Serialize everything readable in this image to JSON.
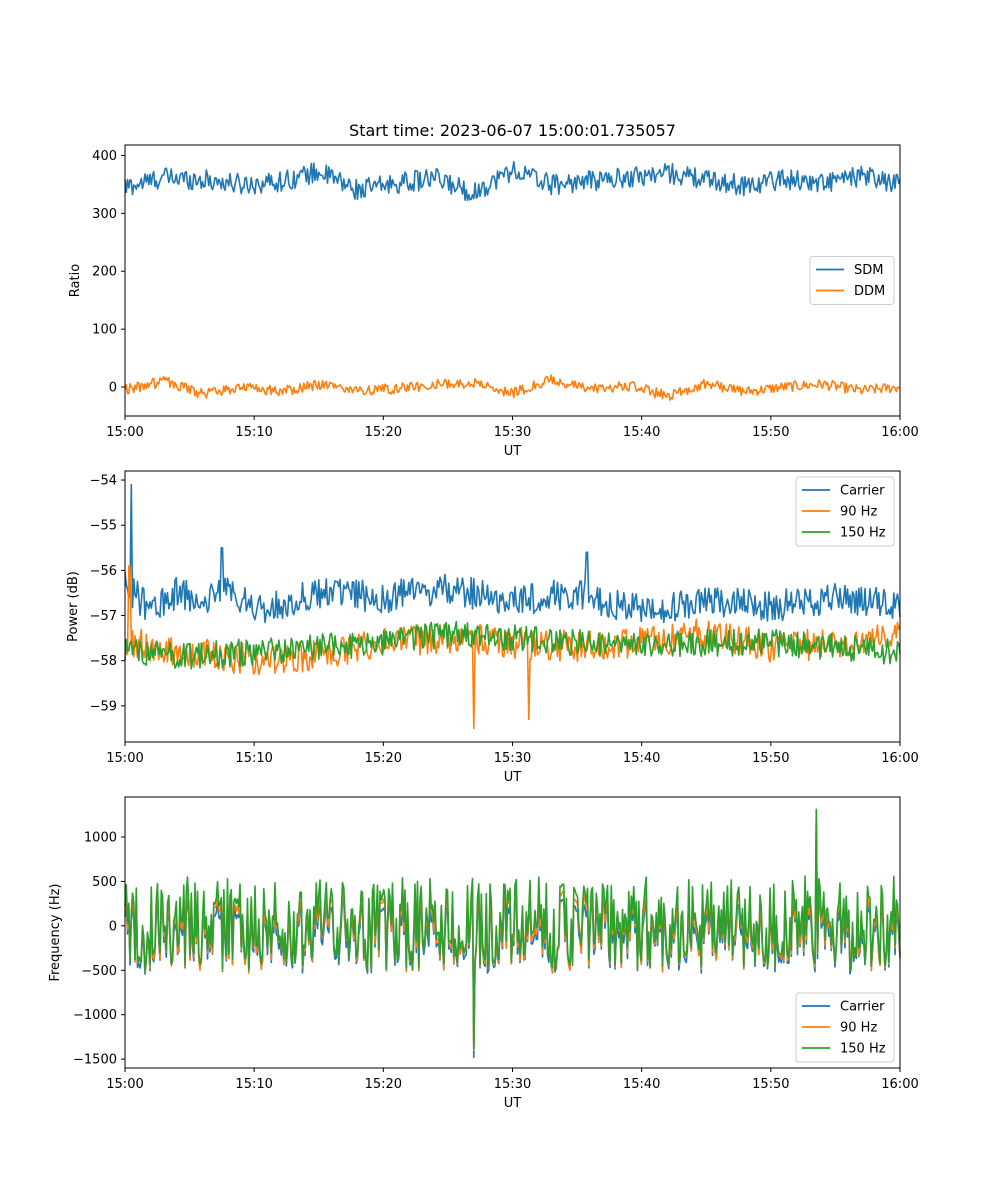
{
  "figure_title": "Start time: 2023-06-07 15:00:01.735057",
  "colors": {
    "blue": "#1f77b4",
    "orange": "#ff7f0e",
    "green": "#2ca02c"
  },
  "chart_data": [
    {
      "type": "line",
      "title": "Start time: 2023-06-07 15:00:01.735057",
      "xlabel": "UT",
      "ylabel": "Ratio",
      "xlim": [
        "15:00",
        "16:00"
      ],
      "xticks": [
        "15:00",
        "15:10",
        "15:20",
        "15:30",
        "15:40",
        "15:50",
        "16:00"
      ],
      "ylim": [
        -50,
        418
      ],
      "yticks": [
        0,
        100,
        200,
        300,
        400
      ],
      "grid": false,
      "legend_position": "center-right",
      "series": [
        {
          "name": "SDM",
          "color": "#1f77b4",
          "x": [
            "15:00",
            "15:03",
            "15:06",
            "15:09",
            "15:12",
            "15:15",
            "15:18",
            "15:21",
            "15:24",
            "15:27",
            "15:30",
            "15:33",
            "15:36",
            "15:39",
            "15:42",
            "15:45",
            "15:48",
            "15:51",
            "15:54",
            "15:57",
            "16:00"
          ],
          "y": [
            345,
            362,
            358,
            350,
            355,
            372,
            340,
            352,
            360,
            335,
            375,
            350,
            356,
            362,
            370,
            358,
            348,
            360,
            352,
            364,
            350
          ],
          "base": 355,
          "amplitude": 18
        },
        {
          "name": "DDM",
          "color": "#ff7f0e",
          "x": [
            "15:00",
            "15:03",
            "15:06",
            "15:09",
            "15:12",
            "15:15",
            "15:18",
            "15:21",
            "15:24",
            "15:27",
            "15:30",
            "15:33",
            "15:36",
            "15:39",
            "15:42",
            "15:45",
            "15:48",
            "15:51",
            "15:54",
            "15:57",
            "16:00"
          ],
          "y": [
            -5,
            10,
            -12,
            0,
            -8,
            5,
            -6,
            -3,
            4,
            8,
            -10,
            12,
            -4,
            2,
            -15,
            6,
            -8,
            0,
            5,
            -6,
            0
          ],
          "base": 0,
          "amplitude": 9
        }
      ]
    },
    {
      "type": "line",
      "xlabel": "UT",
      "ylabel": "Power (dB)",
      "xlim": [
        "15:00",
        "16:00"
      ],
      "xticks": [
        "15:00",
        "15:10",
        "15:20",
        "15:30",
        "15:40",
        "15:50",
        "16:00"
      ],
      "ylim": [
        -59.8,
        -53.8
      ],
      "yticks": [
        -54,
        -55,
        -56,
        -57,
        -58,
        -59
      ],
      "grid": false,
      "legend_position": "top-right",
      "series": [
        {
          "name": "Carrier",
          "color": "#1f77b4",
          "x": [
            "15:00",
            "15:02",
            "15:04",
            "15:06",
            "15:08",
            "15:10",
            "15:15",
            "15:20",
            "15:25",
            "15:30",
            "15:35",
            "15:40",
            "15:45",
            "15:50",
            "15:55",
            "16:00"
          ],
          "y": [
            -56.3,
            -56.9,
            -56.5,
            -56.7,
            -56.4,
            -56.9,
            -56.5,
            -56.6,
            -56.4,
            -56.7,
            -56.5,
            -56.9,
            -56.7,
            -56.8,
            -56.6,
            -56.8
          ],
          "spikes": [
            [
              "15:00:30",
              -54.1
            ],
            [
              "15:07:30",
              -55.5
            ],
            [
              "15:35:45",
              -55.6
            ]
          ],
          "amplitude": 0.35
        },
        {
          "name": "90 Hz",
          "color": "#ff7f0e",
          "x": [
            "15:00",
            "15:05",
            "15:10",
            "15:15",
            "15:20",
            "15:25",
            "15:30",
            "15:35",
            "15:40",
            "15:45",
            "15:50",
            "15:55",
            "16:00"
          ],
          "y": [
            -57.6,
            -57.8,
            -58.0,
            -57.9,
            -57.6,
            -57.5,
            -57.6,
            -57.7,
            -57.6,
            -57.4,
            -57.7,
            -57.6,
            -57.5
          ],
          "spikes": [
            [
              "15:00:20",
              -55.9
            ],
            [
              "15:27:00",
              -59.5
            ],
            [
              "15:31:15",
              -59.3
            ]
          ],
          "amplitude": 0.35
        },
        {
          "name": "150 Hz",
          "color": "#2ca02c",
          "x": [
            "15:00",
            "15:05",
            "15:10",
            "15:15",
            "15:20",
            "15:25",
            "15:30",
            "15:35",
            "15:40",
            "15:45",
            "15:50",
            "15:55",
            "16:00"
          ],
          "y": [
            -57.8,
            -57.9,
            -57.8,
            -57.7,
            -57.6,
            -57.4,
            -57.5,
            -57.6,
            -57.7,
            -57.6,
            -57.6,
            -57.7,
            -57.8
          ],
          "spikes": [],
          "amplitude": 0.3
        }
      ]
    },
    {
      "type": "line",
      "xlabel": "UT",
      "ylabel": "Frequency (Hz)",
      "xlim": [
        "15:00",
        "16:00"
      ],
      "xticks": [
        "15:00",
        "15:10",
        "15:20",
        "15:30",
        "15:40",
        "15:50",
        "16:00"
      ],
      "ylim": [
        -1600,
        1450
      ],
      "yticks": [
        1000,
        500,
        0,
        -500,
        -1000,
        -1500
      ],
      "grid": false,
      "legend_position": "bottom-right",
      "series": [
        {
          "name": "Carrier",
          "color": "#1f77b4",
          "offset": -100,
          "amplitude": 430,
          "spikes": [
            [
              "15:27:00",
              -1480
            ],
            [
              "15:53:30",
              1200
            ]
          ]
        },
        {
          "name": "90 Hz",
          "color": "#ff7f0e",
          "offset": -40,
          "amplitude": 450,
          "spikes": [
            [
              "15:27:00",
              -1400
            ],
            [
              "15:53:30",
              1250
            ]
          ]
        },
        {
          "name": "150 Hz",
          "color": "#2ca02c",
          "offset": 20,
          "amplitude": 470,
          "spikes": [
            [
              "15:27:00",
              -1380
            ],
            [
              "15:53:30",
              1310
            ]
          ]
        }
      ]
    }
  ]
}
